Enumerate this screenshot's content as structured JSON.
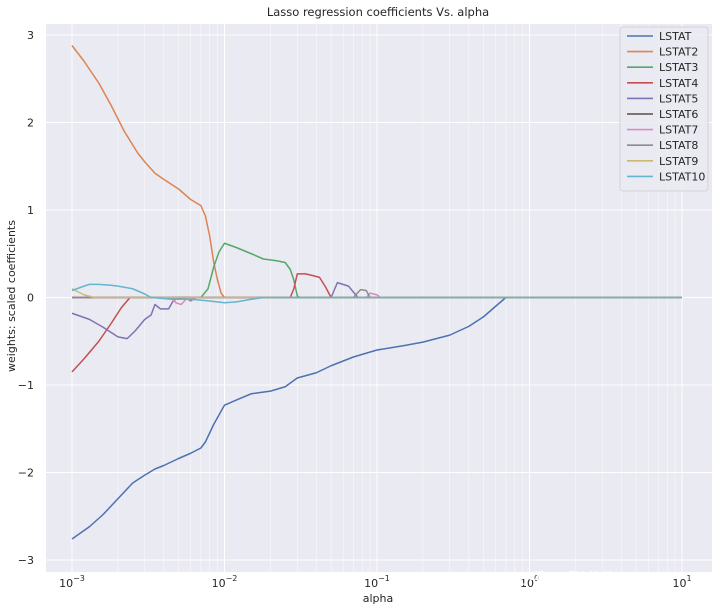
{
  "watermark": "知乎 @张北海mlpy",
  "chart_data": {
    "type": "line",
    "title": "Lasso regression coefficients Vs. alpha",
    "xlabel": "alpha",
    "ylabel": "weights: scaled coefficients",
    "xscale": "log",
    "xlim": [
      0.001,
      10
    ],
    "ylim": [
      -3,
      3
    ],
    "xticks": [
      {
        "value": 0.001,
        "base": "10",
        "exp": "−3"
      },
      {
        "value": 0.01,
        "base": "10",
        "exp": "−2"
      },
      {
        "value": 0.1,
        "base": "10",
        "exp": "−1"
      },
      {
        "value": 1,
        "base": "10",
        "exp": "0"
      },
      {
        "value": 10,
        "base": "10",
        "exp": "1"
      }
    ],
    "yticks": [
      {
        "value": 3,
        "label": "3"
      },
      {
        "value": 2,
        "label": "2"
      },
      {
        "value": 1,
        "label": "1"
      },
      {
        "value": 0,
        "label": "0"
      },
      {
        "value": -1,
        "label": "−1"
      },
      {
        "value": -2,
        "label": "−2"
      },
      {
        "value": -3,
        "label": "−3"
      }
    ],
    "grid": true,
    "background": "#eaeaf2",
    "legend_position": "top-right",
    "series": [
      {
        "name": "LSTAT",
        "color": "#4c72b0",
        "points": [
          [
            0.001,
            -2.76
          ],
          [
            0.0013,
            -2.62
          ],
          [
            0.0016,
            -2.48
          ],
          [
            0.002,
            -2.3
          ],
          [
            0.0025,
            -2.12
          ],
          [
            0.003,
            -2.03
          ],
          [
            0.0035,
            -1.96
          ],
          [
            0.004,
            -1.92
          ],
          [
            0.005,
            -1.84
          ],
          [
            0.006,
            -1.78
          ],
          [
            0.007,
            -1.72
          ],
          [
            0.0075,
            -1.65
          ],
          [
            0.0085,
            -1.45
          ],
          [
            0.01,
            -1.23
          ],
          [
            0.012,
            -1.17
          ],
          [
            0.015,
            -1.1
          ],
          [
            0.02,
            -1.07
          ],
          [
            0.025,
            -1.02
          ],
          [
            0.03,
            -0.92
          ],
          [
            0.04,
            -0.86
          ],
          [
            0.05,
            -0.78
          ],
          [
            0.07,
            -0.68
          ],
          [
            0.1,
            -0.6
          ],
          [
            0.15,
            -0.55
          ],
          [
            0.2,
            -0.51
          ],
          [
            0.3,
            -0.43
          ],
          [
            0.4,
            -0.33
          ],
          [
            0.5,
            -0.22
          ],
          [
            0.6,
            -0.1
          ],
          [
            0.7,
            0
          ],
          [
            10,
            0
          ]
        ]
      },
      {
        "name": "LSTAT2",
        "color": "#dd8452",
        "points": [
          [
            0.001,
            2.88
          ],
          [
            0.0012,
            2.7
          ],
          [
            0.0015,
            2.45
          ],
          [
            0.0018,
            2.2
          ],
          [
            0.0022,
            1.9
          ],
          [
            0.0027,
            1.65
          ],
          [
            0.003,
            1.55
          ],
          [
            0.0035,
            1.42
          ],
          [
            0.004,
            1.35
          ],
          [
            0.005,
            1.24
          ],
          [
            0.006,
            1.12
          ],
          [
            0.007,
            1.05
          ],
          [
            0.0075,
            0.93
          ],
          [
            0.008,
            0.7
          ],
          [
            0.0085,
            0.4
          ],
          [
            0.009,
            0.2
          ],
          [
            0.0095,
            0.05
          ],
          [
            0.01,
            0
          ],
          [
            10,
            0
          ]
        ]
      },
      {
        "name": "LSTAT3",
        "color": "#55a868",
        "points": [
          [
            0.001,
            0
          ],
          [
            0.007,
            0
          ],
          [
            0.0078,
            0.1
          ],
          [
            0.0085,
            0.35
          ],
          [
            0.0092,
            0.52
          ],
          [
            0.01,
            0.62
          ],
          [
            0.012,
            0.57
          ],
          [
            0.015,
            0.5
          ],
          [
            0.018,
            0.44
          ],
          [
            0.022,
            0.42
          ],
          [
            0.025,
            0.4
          ],
          [
            0.027,
            0.32
          ],
          [
            0.0285,
            0.2
          ],
          [
            0.03,
            0.02
          ],
          [
            0.031,
            0
          ],
          [
            10,
            0
          ]
        ]
      },
      {
        "name": "LSTAT4",
        "color": "#c44e52",
        "points": [
          [
            0.001,
            -0.85
          ],
          [
            0.0012,
            -0.7
          ],
          [
            0.0015,
            -0.5
          ],
          [
            0.0018,
            -0.3
          ],
          [
            0.0021,
            -0.12
          ],
          [
            0.0024,
            0
          ],
          [
            0.027,
            0
          ],
          [
            0.0285,
            0.1
          ],
          [
            0.03,
            0.27
          ],
          [
            0.034,
            0.27
          ],
          [
            0.038,
            0.25
          ],
          [
            0.042,
            0.23
          ],
          [
            0.046,
            0.12
          ],
          [
            0.05,
            0
          ],
          [
            10,
            0
          ]
        ]
      },
      {
        "name": "LSTAT5",
        "color": "#8172b3",
        "points": [
          [
            0.001,
            -0.18
          ],
          [
            0.0013,
            -0.25
          ],
          [
            0.0016,
            -0.34
          ],
          [
            0.002,
            -0.45
          ],
          [
            0.0023,
            -0.47
          ],
          [
            0.0026,
            -0.38
          ],
          [
            0.003,
            -0.25
          ],
          [
            0.0033,
            -0.2
          ],
          [
            0.0035,
            -0.08
          ],
          [
            0.0038,
            -0.13
          ],
          [
            0.0043,
            -0.13
          ],
          [
            0.0046,
            -0.04
          ],
          [
            0.005,
            0
          ],
          [
            0.05,
            0
          ],
          [
            0.055,
            0.17
          ],
          [
            0.065,
            0.13
          ],
          [
            0.075,
            0
          ],
          [
            10,
            0
          ]
        ]
      },
      {
        "name": "LSTAT6",
        "color": "#5a4d46",
        "points": [
          [
            0.001,
            0
          ],
          [
            10,
            0
          ]
        ]
      },
      {
        "name": "LSTAT7",
        "color": "#da8bc3",
        "points": [
          [
            0.001,
            0
          ],
          [
            0.0045,
            0
          ],
          [
            0.0048,
            -0.06
          ],
          [
            0.0052,
            -0.08
          ],
          [
            0.0056,
            -0.02
          ],
          [
            0.006,
            0
          ],
          [
            0.085,
            0
          ],
          [
            0.09,
            0.05
          ],
          [
            0.1,
            0.03
          ],
          [
            0.105,
            0
          ],
          [
            10,
            0
          ]
        ]
      },
      {
        "name": "LSTAT8",
        "color": "#8c8c8c",
        "points": [
          [
            0.001,
            0
          ],
          [
            0.0055,
            0
          ],
          [
            0.006,
            -0.04
          ],
          [
            0.0065,
            0
          ],
          [
            0.07,
            0
          ],
          [
            0.078,
            0.09
          ],
          [
            0.085,
            0.08
          ],
          [
            0.09,
            0
          ],
          [
            10,
            0
          ]
        ]
      },
      {
        "name": "LSTAT9",
        "color": "#ccb974",
        "points": [
          [
            0.001,
            0.1
          ],
          [
            0.0012,
            0.03
          ],
          [
            0.0014,
            0
          ],
          [
            10,
            0
          ]
        ]
      },
      {
        "name": "LSTAT10",
        "color": "#64b5cd",
        "points": [
          [
            0.001,
            0.08
          ],
          [
            0.0012,
            0.13
          ],
          [
            0.0013,
            0.15
          ],
          [
            0.0015,
            0.15
          ],
          [
            0.0018,
            0.14
          ],
          [
            0.002,
            0.13
          ],
          [
            0.0025,
            0.1
          ],
          [
            0.003,
            0.04
          ],
          [
            0.0033,
            0
          ],
          [
            0.0045,
            -0.02
          ],
          [
            0.006,
            -0.02
          ],
          [
            0.008,
            -0.04
          ],
          [
            0.01,
            -0.06
          ],
          [
            0.012,
            -0.05
          ],
          [
            0.015,
            -0.02
          ],
          [
            0.018,
            0
          ],
          [
            10,
            0
          ]
        ]
      }
    ]
  }
}
